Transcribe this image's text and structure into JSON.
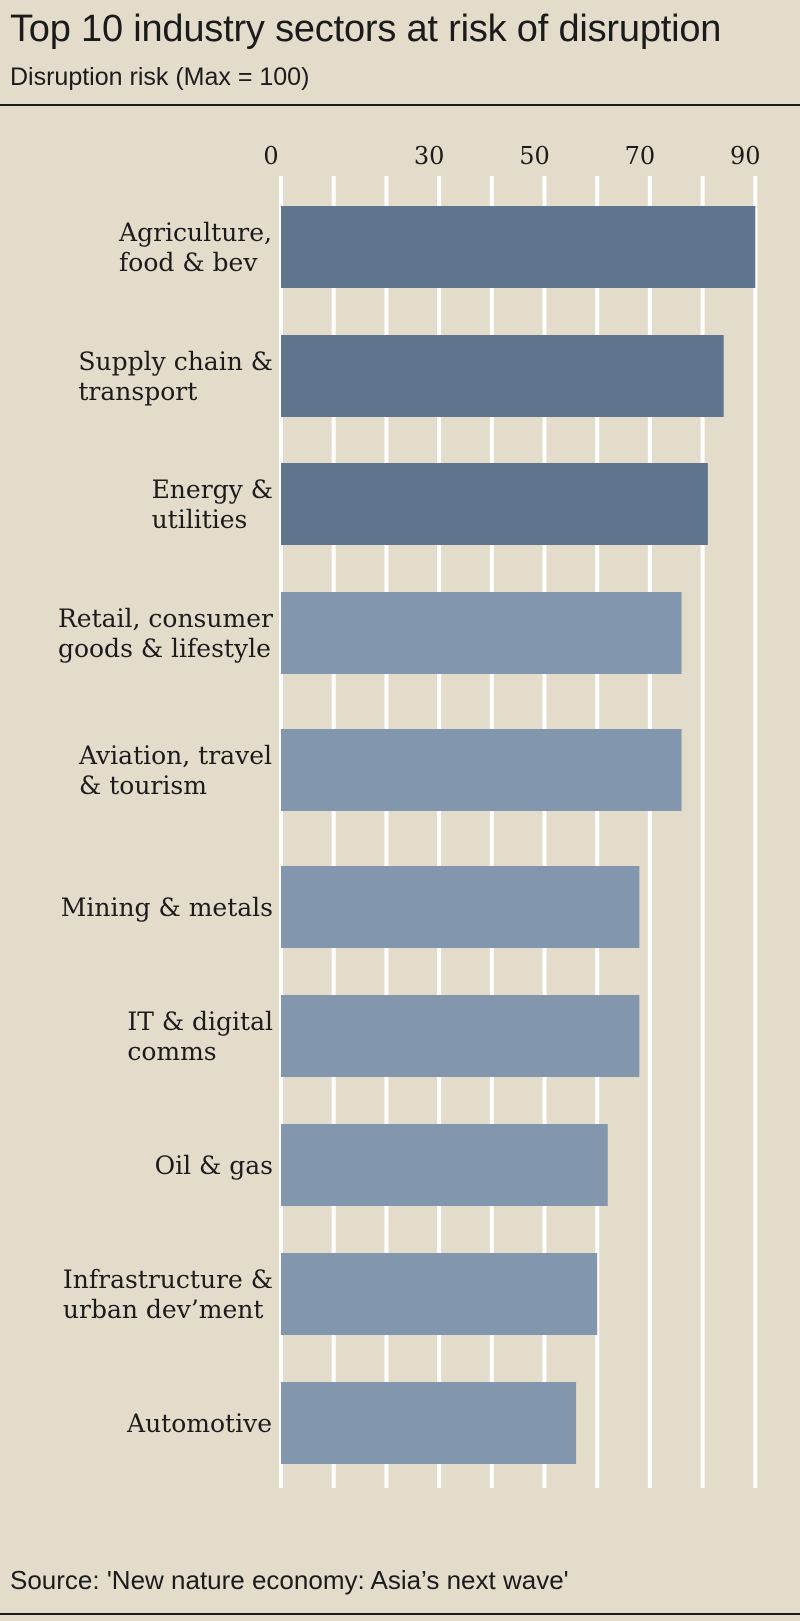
{
  "header": {
    "title": "Top 10 industry sectors at risk of disruption",
    "subtitle": "Disruption risk (Max = 100)"
  },
  "footer": {
    "source": "Source: 'New nature economy: Asia’s next wave'"
  },
  "colors": {
    "background": "#e3dccb",
    "bar_highlight": "#5f758e",
    "bar_regular": "#8296ae",
    "gridline": "#ffffff",
    "text": "#1b1b1b"
  },
  "chart_data": {
    "type": "bar",
    "orientation": "horizontal",
    "title": "Top 10 industry sectors at risk of disruption",
    "subtitle": "Disruption risk (Max = 100)",
    "xlabel": "",
    "ylabel": "",
    "xlim": [
      0,
      90
    ],
    "tick_labels": [
      "0",
      "30",
      "50",
      "70",
      "90"
    ],
    "tick_values": [
      0,
      30,
      50,
      70,
      90
    ],
    "grid": true,
    "grid_step": 10,
    "categories": [
      [
        "Agriculture,",
        "food & bev"
      ],
      [
        "Supply chain &",
        "transport"
      ],
      [
        "Energy &",
        "utilities"
      ],
      [
        "Retail, consumer",
        "goods & lifestyle"
      ],
      [
        "Aviation, travel",
        "& tourism"
      ],
      [
        "Mining & metals"
      ],
      [
        "IT & digital",
        "comms"
      ],
      [
        "Oil & gas"
      ],
      [
        "Infrastructure &",
        "urban dev’ment"
      ],
      [
        "Automotive"
      ]
    ],
    "values": [
      90,
      84,
      81,
      76,
      76,
      68,
      68,
      62,
      60,
      56
    ],
    "highlighted": [
      true,
      true,
      true,
      false,
      false,
      false,
      false,
      false,
      false,
      false
    ]
  }
}
